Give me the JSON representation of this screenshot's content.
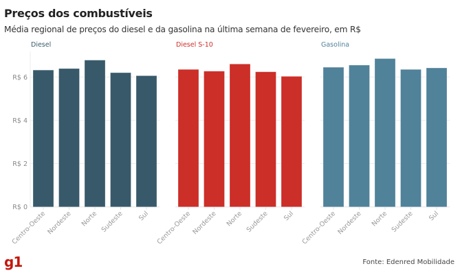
{
  "header": {
    "title": "Preços dos combustíveis",
    "subtitle": "Média regional de preços do diesel e da gasolina na última semana de fevereiro, em R$"
  },
  "footer": {
    "logo": "g1",
    "source": "Fonte: Edenred Mobilidade"
  },
  "chart_data": {
    "type": "bar",
    "title": "Preços dos combustíveis",
    "subtitle": "Média regional de preços do diesel e da gasolina na última semana de fevereiro, em R$",
    "categories": [
      "Centro-Oeste",
      "Nordeste",
      "Norte",
      "Sudeste",
      "Sul"
    ],
    "ylim": [
      0,
      7
    ],
    "yticks": [
      0,
      2,
      4,
      6
    ],
    "ytick_labels": [
      "R$ 0",
      "R$ 2",
      "R$ 4",
      "R$ 6"
    ],
    "grid": true,
    "layout": "small-multiples",
    "series": [
      {
        "name": "Diesel",
        "color": "#38596a",
        "values": [
          6.32,
          6.39,
          6.78,
          6.2,
          6.06
        ]
      },
      {
        "name": "Diesel S-10",
        "color": "#cc2e28",
        "values": [
          6.35,
          6.27,
          6.6,
          6.24,
          6.03
        ]
      },
      {
        "name": "Gasolina",
        "color": "#50829a",
        "values": [
          6.45,
          6.55,
          6.85,
          6.35,
          6.42
        ]
      }
    ]
  }
}
